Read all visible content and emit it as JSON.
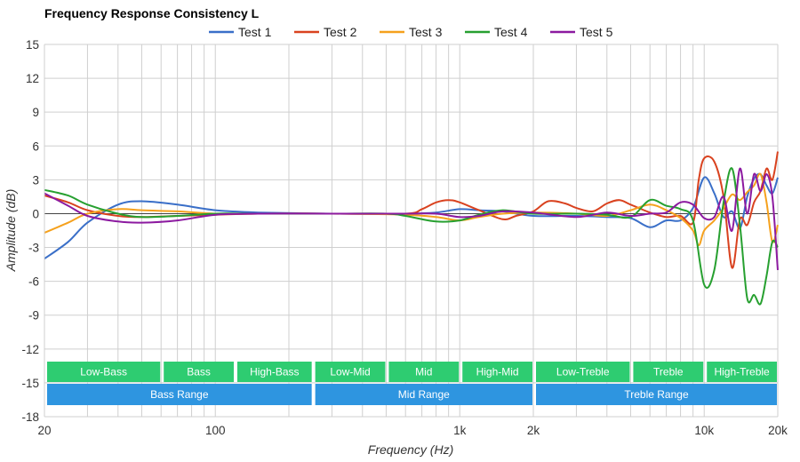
{
  "chart_data": {
    "type": "line",
    "title": "Frequency Response Consistency L",
    "xlabel": "Frequency (Hz)",
    "ylabel": "Amplitude (dB)",
    "xscale": "log",
    "xlim": [
      20,
      20000
    ],
    "ylim": [
      -18,
      15
    ],
    "yticks": [
      15,
      12,
      9,
      6,
      3,
      0,
      -3,
      -6,
      -9,
      -12,
      -15,
      -18
    ],
    "xtick_labels": [
      {
        "value": 20,
        "label": "20"
      },
      {
        "value": 100,
        "label": "100"
      },
      {
        "value": 1000,
        "label": "1k"
      },
      {
        "value": 2000,
        "label": "2k"
      },
      {
        "value": 10000,
        "label": "10k"
      },
      {
        "value": 20000,
        "label": "20k"
      }
    ],
    "grid": true,
    "legend_position": "top-center",
    "series": [
      {
        "name": "Test 1",
        "color": "#3a6fc8",
        "points": [
          [
            20,
            -4
          ],
          [
            25,
            -2.5
          ],
          [
            30,
            -0.8
          ],
          [
            40,
            0.8
          ],
          [
            50,
            1.1
          ],
          [
            70,
            0.8
          ],
          [
            100,
            0.3
          ],
          [
            150,
            0.1
          ],
          [
            300,
            0
          ],
          [
            600,
            0
          ],
          [
            800,
            0.1
          ],
          [
            1000,
            0.4
          ],
          [
            1200,
            0.3
          ],
          [
            1500,
            0.2
          ],
          [
            2000,
            -0.2
          ],
          [
            3000,
            -0.2
          ],
          [
            4000,
            -0.3
          ],
          [
            5000,
            -0.4
          ],
          [
            6000,
            -1.2
          ],
          [
            7000,
            -0.6
          ],
          [
            8000,
            -0.6
          ],
          [
            9000,
            0.5
          ],
          [
            10000,
            3.2
          ],
          [
            11000,
            1.8
          ],
          [
            12000,
            -0.3
          ],
          [
            13000,
            0.2
          ],
          [
            14000,
            -1.3
          ],
          [
            15000,
            1.5
          ],
          [
            16000,
            3.1
          ],
          [
            17000,
            3.5
          ],
          [
            18000,
            2.5
          ],
          [
            19000,
            1.8
          ],
          [
            20000,
            3.2
          ]
        ]
      },
      {
        "name": "Test 2",
        "color": "#d9421f",
        "points": [
          [
            20,
            1.6
          ],
          [
            25,
            1.0
          ],
          [
            30,
            0.3
          ],
          [
            40,
            -0.2
          ],
          [
            50,
            -0.3
          ],
          [
            70,
            -0.2
          ],
          [
            100,
            -0.1
          ],
          [
            150,
            0
          ],
          [
            300,
            0
          ],
          [
            600,
            0
          ],
          [
            700,
            0.4
          ],
          [
            800,
            1.0
          ],
          [
            900,
            1.2
          ],
          [
            1000,
            1.0
          ],
          [
            1200,
            0.3
          ],
          [
            1500,
            -0.5
          ],
          [
            1700,
            -0.2
          ],
          [
            2000,
            0.2
          ],
          [
            2300,
            1.1
          ],
          [
            2700,
            0.9
          ],
          [
            3000,
            0.5
          ],
          [
            3500,
            0.2
          ],
          [
            4000,
            0.9
          ],
          [
            4500,
            1.2
          ],
          [
            5000,
            0.8
          ],
          [
            6000,
            0.1
          ],
          [
            7000,
            -0.3
          ],
          [
            8000,
            -0.2
          ],
          [
            9000,
            -0.8
          ],
          [
            9500,
            3
          ],
          [
            10000,
            4.9
          ],
          [
            11000,
            4.6
          ],
          [
            12000,
            1.5
          ],
          [
            13000,
            -4.8
          ],
          [
            14000,
            -0.5
          ],
          [
            15000,
            -1
          ],
          [
            16000,
            1
          ],
          [
            17000,
            2
          ],
          [
            18000,
            4
          ],
          [
            19000,
            3
          ],
          [
            20000,
            5.5
          ]
        ]
      },
      {
        "name": "Test 3",
        "color": "#f5a11d",
        "points": [
          [
            20,
            -1.7
          ],
          [
            25,
            -0.8
          ],
          [
            30,
            0
          ],
          [
            40,
            0.4
          ],
          [
            50,
            0.3
          ],
          [
            70,
            0.2
          ],
          [
            100,
            0
          ],
          [
            150,
            0
          ],
          [
            300,
            0
          ],
          [
            600,
            -0.1
          ],
          [
            800,
            -0.3
          ],
          [
            1000,
            -0.6
          ],
          [
            1200,
            -0.3
          ],
          [
            1500,
            0
          ],
          [
            2000,
            0.1
          ],
          [
            3000,
            0
          ],
          [
            4000,
            -0.2
          ],
          [
            5000,
            0.3
          ],
          [
            6000,
            0.8
          ],
          [
            7000,
            0.3
          ],
          [
            8000,
            -0.4
          ],
          [
            9000,
            -1.5
          ],
          [
            9500,
            -2.8
          ],
          [
            10000,
            -1.5
          ],
          [
            11000,
            -0.6
          ],
          [
            12000,
            0.5
          ],
          [
            13000,
            1.7
          ],
          [
            14000,
            1.2
          ],
          [
            15000,
            1.9
          ],
          [
            16000,
            2.5
          ],
          [
            17000,
            3.5
          ],
          [
            18000,
            1.0
          ],
          [
            19000,
            -2.5
          ],
          [
            20000,
            -1.0
          ]
        ]
      },
      {
        "name": "Test 4",
        "color": "#27a030",
        "points": [
          [
            20,
            2.1
          ],
          [
            25,
            1.6
          ],
          [
            30,
            0.8
          ],
          [
            40,
            0
          ],
          [
            50,
            -0.3
          ],
          [
            70,
            -0.2
          ],
          [
            100,
            0
          ],
          [
            150,
            0
          ],
          [
            300,
            0
          ],
          [
            500,
            0
          ],
          [
            600,
            -0.2
          ],
          [
            800,
            -0.7
          ],
          [
            1000,
            -0.6
          ],
          [
            1200,
            -0.1
          ],
          [
            1500,
            0.3
          ],
          [
            2000,
            0
          ],
          [
            3000,
            0
          ],
          [
            4000,
            -0.1
          ],
          [
            5000,
            -0.3
          ],
          [
            6000,
            1.2
          ],
          [
            7000,
            0.7
          ],
          [
            8000,
            0.4
          ],
          [
            9000,
            -0.6
          ],
          [
            10000,
            -6.3
          ],
          [
            11000,
            -5
          ],
          [
            12000,
            1
          ],
          [
            13000,
            4
          ],
          [
            14000,
            -1
          ],
          [
            15000,
            -7.5
          ],
          [
            16000,
            -7.2
          ],
          [
            17000,
            -8
          ],
          [
            18000,
            -5.5
          ],
          [
            19000,
            -2.5
          ],
          [
            20000,
            -3
          ]
        ]
      },
      {
        "name": "Test 5",
        "color": "#8c1aa0",
        "points": [
          [
            20,
            1.8
          ],
          [
            25,
            0.7
          ],
          [
            30,
            -0.2
          ],
          [
            40,
            -0.7
          ],
          [
            50,
            -0.8
          ],
          [
            70,
            -0.6
          ],
          [
            100,
            -0.1
          ],
          [
            150,
            0
          ],
          [
            300,
            0
          ],
          [
            600,
            0
          ],
          [
            800,
            0
          ],
          [
            1000,
            -0.3
          ],
          [
            1200,
            -0.2
          ],
          [
            1500,
            0.2
          ],
          [
            2000,
            0.1
          ],
          [
            3000,
            -0.3
          ],
          [
            4000,
            0.1
          ],
          [
            5000,
            -0.2
          ],
          [
            6000,
            0
          ],
          [
            7000,
            0.1
          ],
          [
            8000,
            1.0
          ],
          [
            9000,
            0.8
          ],
          [
            10000,
            -0.4
          ],
          [
            11000,
            -0.3
          ],
          [
            12000,
            1.5
          ],
          [
            13000,
            -1.5
          ],
          [
            14000,
            4
          ],
          [
            15000,
            0
          ],
          [
            16000,
            3.5
          ],
          [
            17000,
            2
          ],
          [
            18000,
            3.5
          ],
          [
            19000,
            1.5
          ],
          [
            20000,
            -5
          ]
        ]
      }
    ]
  },
  "bands": {
    "row1": [
      {
        "label": "Low-Bass",
        "from": 20,
        "to": 60
      },
      {
        "label": "Bass",
        "from": 60,
        "to": 120
      },
      {
        "label": "High-Bass",
        "from": 120,
        "to": 250
      },
      {
        "label": "Low-Mid",
        "from": 250,
        "to": 500
      },
      {
        "label": "Mid",
        "from": 500,
        "to": 1000
      },
      {
        "label": "High-Mid",
        "from": 1000,
        "to": 2000
      },
      {
        "label": "Low-Treble",
        "from": 2000,
        "to": 5000
      },
      {
        "label": "Treble",
        "from": 5000,
        "to": 10000
      },
      {
        "label": "High-Treble",
        "from": 10000,
        "to": 20000
      }
    ],
    "row2": [
      {
        "label": "Bass Range",
        "from": 20,
        "to": 250
      },
      {
        "label": "Mid Range",
        "from": 250,
        "to": 2000
      },
      {
        "label": "Treble Range",
        "from": 2000,
        "to": 20000
      }
    ],
    "row1_color": "#2ecc71",
    "row2_color": "#2e95e0"
  }
}
